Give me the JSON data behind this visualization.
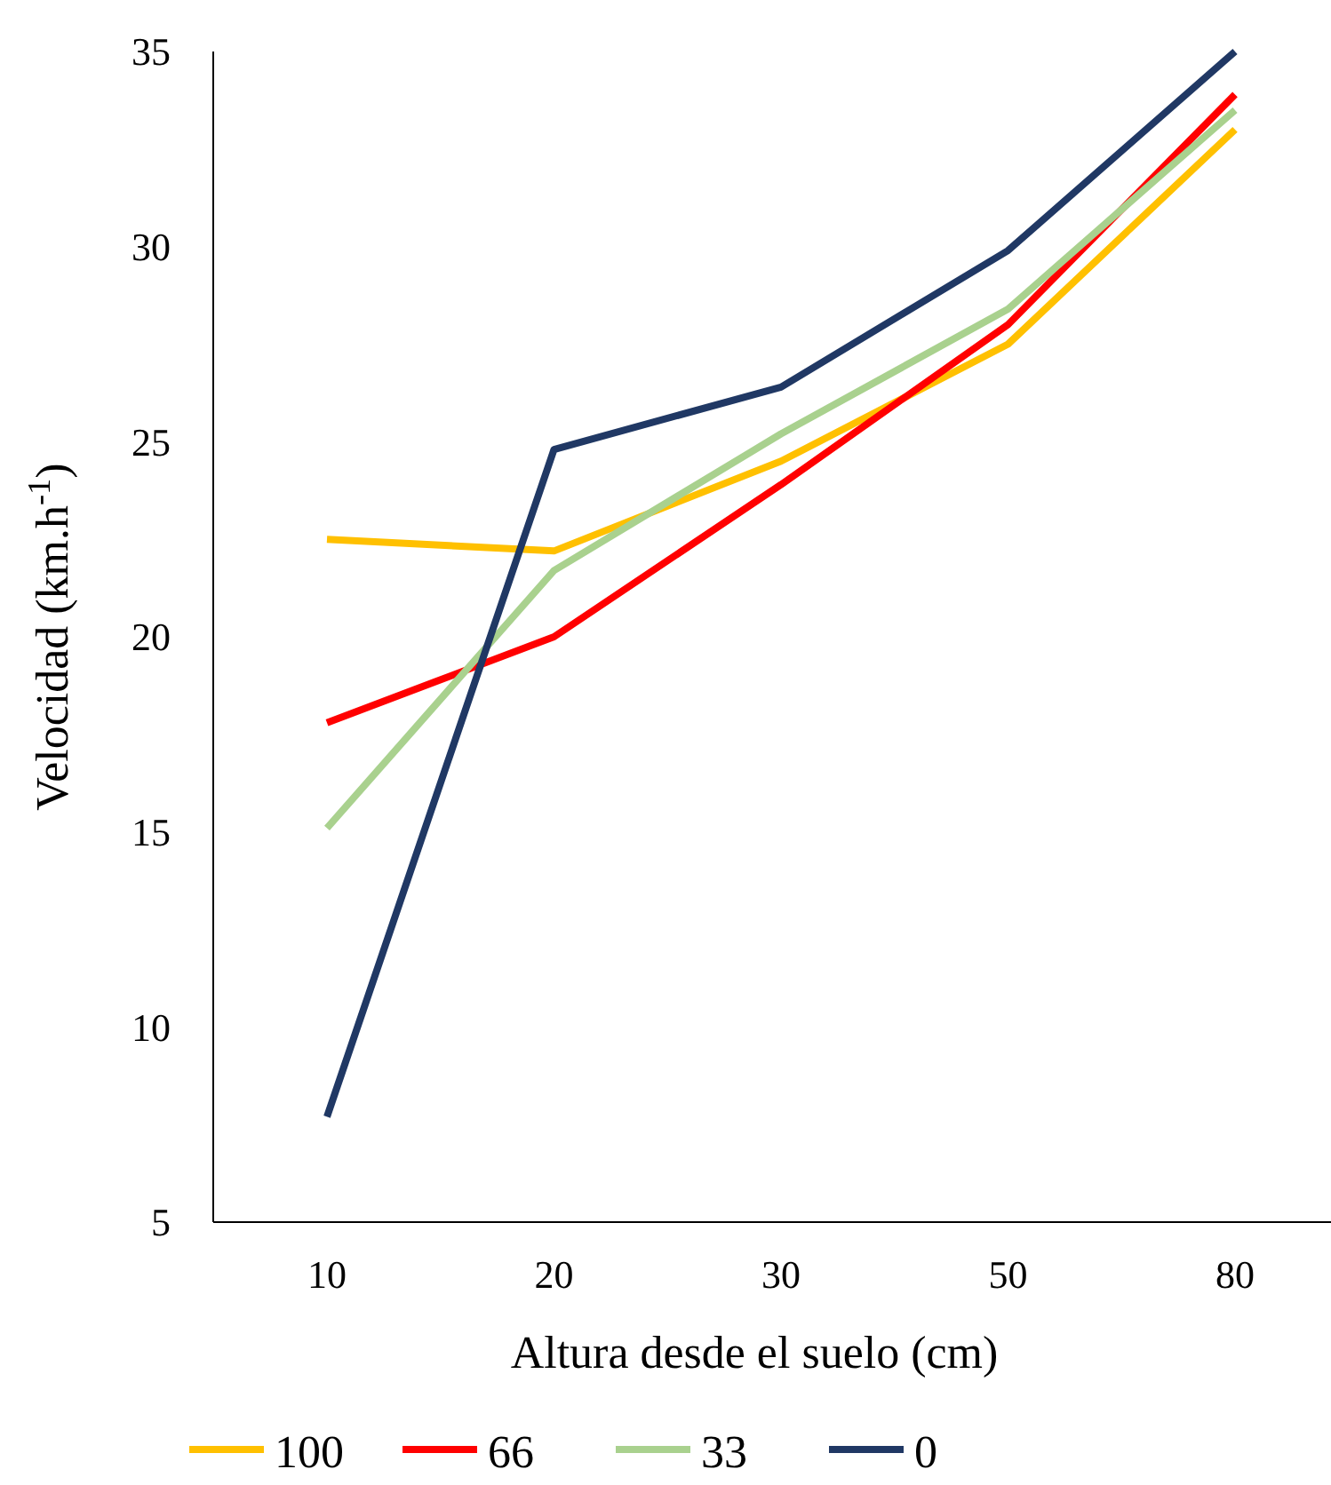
{
  "chart_data": {
    "type": "line",
    "xlabel": "Altura desde el suelo (cm)",
    "ylabel": "Velocidad (km.h$^{-1}$)",
    "categories": [
      "10",
      "20",
      "30",
      "50",
      "80"
    ],
    "ylim": [
      5,
      35
    ],
    "yticks": [
      5,
      10,
      15,
      20,
      25,
      30,
      35
    ],
    "grid": false,
    "legend": "bottom",
    "marker": "none",
    "line_style": "solid",
    "series": [
      {
        "name": "100",
        "color": "#ffc000",
        "values": [
          22.5,
          22.2,
          24.5,
          27.5,
          33.0
        ]
      },
      {
        "name": "66",
        "color": "#ff0000",
        "values": [
          17.8,
          20.0,
          23.9,
          28.0,
          33.9
        ]
      },
      {
        "name": "33",
        "color": "#a9d18e",
        "values": [
          15.1,
          21.7,
          25.2,
          28.4,
          33.5
        ]
      },
      {
        "name": "0",
        "color": "#203864",
        "values": [
          7.7,
          24.8,
          26.4,
          29.9,
          35.0
        ]
      }
    ]
  }
}
